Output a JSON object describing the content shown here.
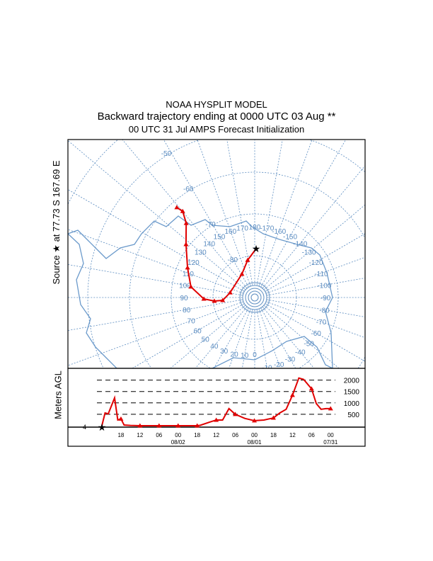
{
  "header": {
    "model": "NOAA HYSPLIT MODEL",
    "title": "Backward trajectory ending at 0000 UTC 03 Aug **",
    "subtitle": "00 UTC 31 Jul    AMPS  Forecast Initialization"
  },
  "map": {
    "source_label": "Source ★ at   77.73 S  167.69 E",
    "source": {
      "lat": -77.73,
      "lon": 167.69
    },
    "lat_labels": [
      "-50",
      "-60",
      "-70",
      "-80"
    ],
    "lon_labels": [
      "180",
      "170",
      "160",
      "150",
      "140",
      "130",
      "120",
      "110",
      "100",
      "90",
      "80",
      "70",
      "60",
      "50",
      "40",
      "30",
      "20",
      "10",
      "0",
      "-10",
      "-20",
      "-30",
      "-40",
      "-50",
      "-60",
      "-70",
      "-80",
      "-90",
      "-100",
      "-110",
      "-120",
      "-130",
      "-140",
      "-150",
      "-160",
      "-170"
    ],
    "colors": {
      "grid": "#5b8cc0",
      "coast": "#6b9acb",
      "trajectory": "#e00000"
    },
    "trajectory": [
      {
        "lat": -78.3,
        "lon": -178.3
      },
      {
        "lat": -80.9,
        "lon": 169.3
      },
      {
        "lat": -83.6,
        "lon": 151.4
      },
      {
        "lat": -84.0,
        "lon": 101.3
      },
      {
        "lat": -82.3,
        "lon": 84.9
      },
      {
        "lat": -80.3,
        "lon": 85.0
      },
      {
        "lat": -77.8,
        "lon": 88.4
      },
      {
        "lat": -74.5,
        "lon": 99.5
      },
      {
        "lat": -72.4,
        "lon": 113.9
      },
      {
        "lat": -69.2,
        "lon": 127.7
      },
      {
        "lat": -65.8,
        "lon": 137.3
      },
      {
        "lat": -63.1,
        "lon": 140.1
      },
      {
        "lat": -61.5,
        "lon": 139.1
      }
    ]
  },
  "chart_data": {
    "type": "line",
    "ylabel": "Meters AGL",
    "start_height_label": "4",
    "y_ticks": [
      "500",
      "1000",
      "1500",
      "2000"
    ],
    "x_ticks": [
      "18",
      "12",
      "06",
      "00",
      "18",
      "12",
      "06",
      "00",
      "18",
      "12",
      "06",
      "00"
    ],
    "date_labels": [
      "08/02",
      "08/01",
      "07/31"
    ],
    "series": [
      {
        "hours_back": [
          0,
          1,
          2,
          4,
          5,
          6,
          7,
          9,
          12,
          18,
          24,
          30,
          31,
          34,
          36,
          38,
          40,
          42,
          45,
          48,
          51,
          54,
          56,
          58,
          60,
          62,
          63.5,
          66,
          67.5,
          69,
          70.5,
          72
        ],
        "height_m": [
          0,
          560,
          520,
          1220,
          250,
          300,
          30,
          10,
          0,
          0,
          0,
          0,
          20,
          160,
          250,
          250,
          750,
          500,
          320,
          220,
          250,
          340,
          560,
          720,
          1340,
          2090,
          2030,
          1620,
          970,
          720,
          750,
          750
        ]
      }
    ]
  }
}
